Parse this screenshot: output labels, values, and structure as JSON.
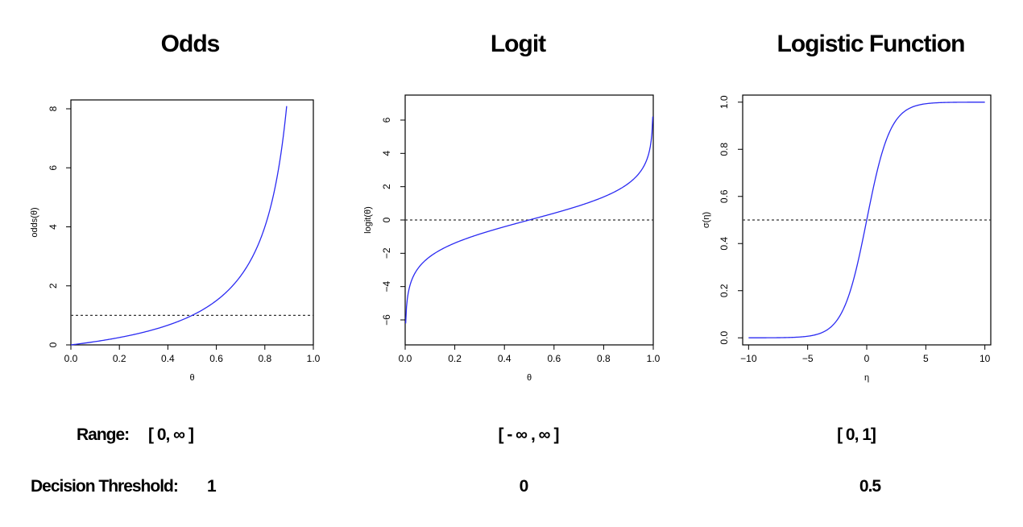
{
  "titles": {
    "odds": "Odds",
    "logit": "Logit",
    "logistic": "Logistic Function"
  },
  "rows": {
    "range_label": "Range:",
    "range_odds": "[ 0, ∞ ]",
    "range_logit": "[ - ∞ , ∞ ]",
    "range_logistic": "[ 0, 1]",
    "threshold_label": "Decision Threshold:",
    "threshold_odds": "1",
    "threshold_logit": "0",
    "threshold_logistic": "0.5"
  },
  "colors": {
    "curve": "#2b2bf2",
    "threshold_line": "#333333",
    "axis": "#000000"
  },
  "chart_data": [
    {
      "type": "line",
      "title": "Odds",
      "xlabel": "θ",
      "ylabel": "odds(θ)",
      "function": "odds",
      "xlim": [
        0,
        1
      ],
      "ylim": [
        0,
        8.3
      ],
      "xticks": [
        0,
        0.2,
        0.4,
        0.6,
        0.8,
        1.0
      ],
      "xtick_labels": [
        "0.0",
        "0.2",
        "0.4",
        "0.6",
        "0.8",
        "1.0"
      ],
      "yticks": [
        0,
        2,
        4,
        6,
        8
      ],
      "ytick_labels": [
        "0",
        "2",
        "4",
        "6",
        "8"
      ],
      "x": [
        0.0,
        0.1,
        0.2,
        0.3,
        0.4,
        0.5,
        0.6,
        0.7,
        0.8,
        0.85,
        0.89
      ],
      "y": [
        0.0,
        0.111,
        0.25,
        0.429,
        0.667,
        1.0,
        1.5,
        2.333,
        4.0,
        5.667,
        8.09
      ],
      "hline": 1
    },
    {
      "type": "line",
      "title": "Logit",
      "xlabel": "θ",
      "ylabel": "logit(θ)",
      "function": "logit",
      "xlim": [
        0,
        1
      ],
      "ylim": [
        -7.5,
        7.5
      ],
      "xticks": [
        0,
        0.2,
        0.4,
        0.6,
        0.8,
        1.0
      ],
      "xtick_labels": [
        "0.0",
        "0.2",
        "0.4",
        "0.6",
        "0.8",
        "1.0"
      ],
      "yticks": [
        -6,
        -4,
        -2,
        0,
        2,
        4,
        6
      ],
      "ytick_labels": [
        "−6",
        "−4",
        "−2",
        "0",
        "2",
        "4",
        "6"
      ],
      "x": [
        0.002,
        0.01,
        0.05,
        0.1,
        0.2,
        0.3,
        0.5,
        0.7,
        0.8,
        0.9,
        0.95,
        0.99,
        0.998
      ],
      "y": [
        -6.21,
        -4.6,
        -2.94,
        -2.2,
        -1.39,
        -0.85,
        0.0,
        0.85,
        1.39,
        2.2,
        2.94,
        4.6,
        6.21
      ],
      "hline": 0
    },
    {
      "type": "line",
      "title": "Logistic Function",
      "xlabel": "η",
      "ylabel": "σ(η)",
      "function": "logistic",
      "xlim": [
        -10.5,
        10.5
      ],
      "ylim": [
        -0.03,
        1.03
      ],
      "xticks": [
        -10,
        -5,
        0,
        5,
        10
      ],
      "xtick_labels": [
        "−10",
        "−5",
        "0",
        "5",
        "10"
      ],
      "yticks": [
        0,
        0.2,
        0.4,
        0.6,
        0.8,
        1.0
      ],
      "ytick_labels": [
        "0.0",
        "0.2",
        "0.4",
        "0.6",
        "0.8",
        "1.0"
      ],
      "x": [
        -10,
        -6,
        -4,
        -2,
        -1,
        0,
        1,
        2,
        4,
        6,
        10
      ],
      "y": [
        0.0,
        0.002,
        0.018,
        0.119,
        0.269,
        0.5,
        0.731,
        0.881,
        0.982,
        0.998,
        1.0
      ],
      "hline": 0.5
    }
  ]
}
